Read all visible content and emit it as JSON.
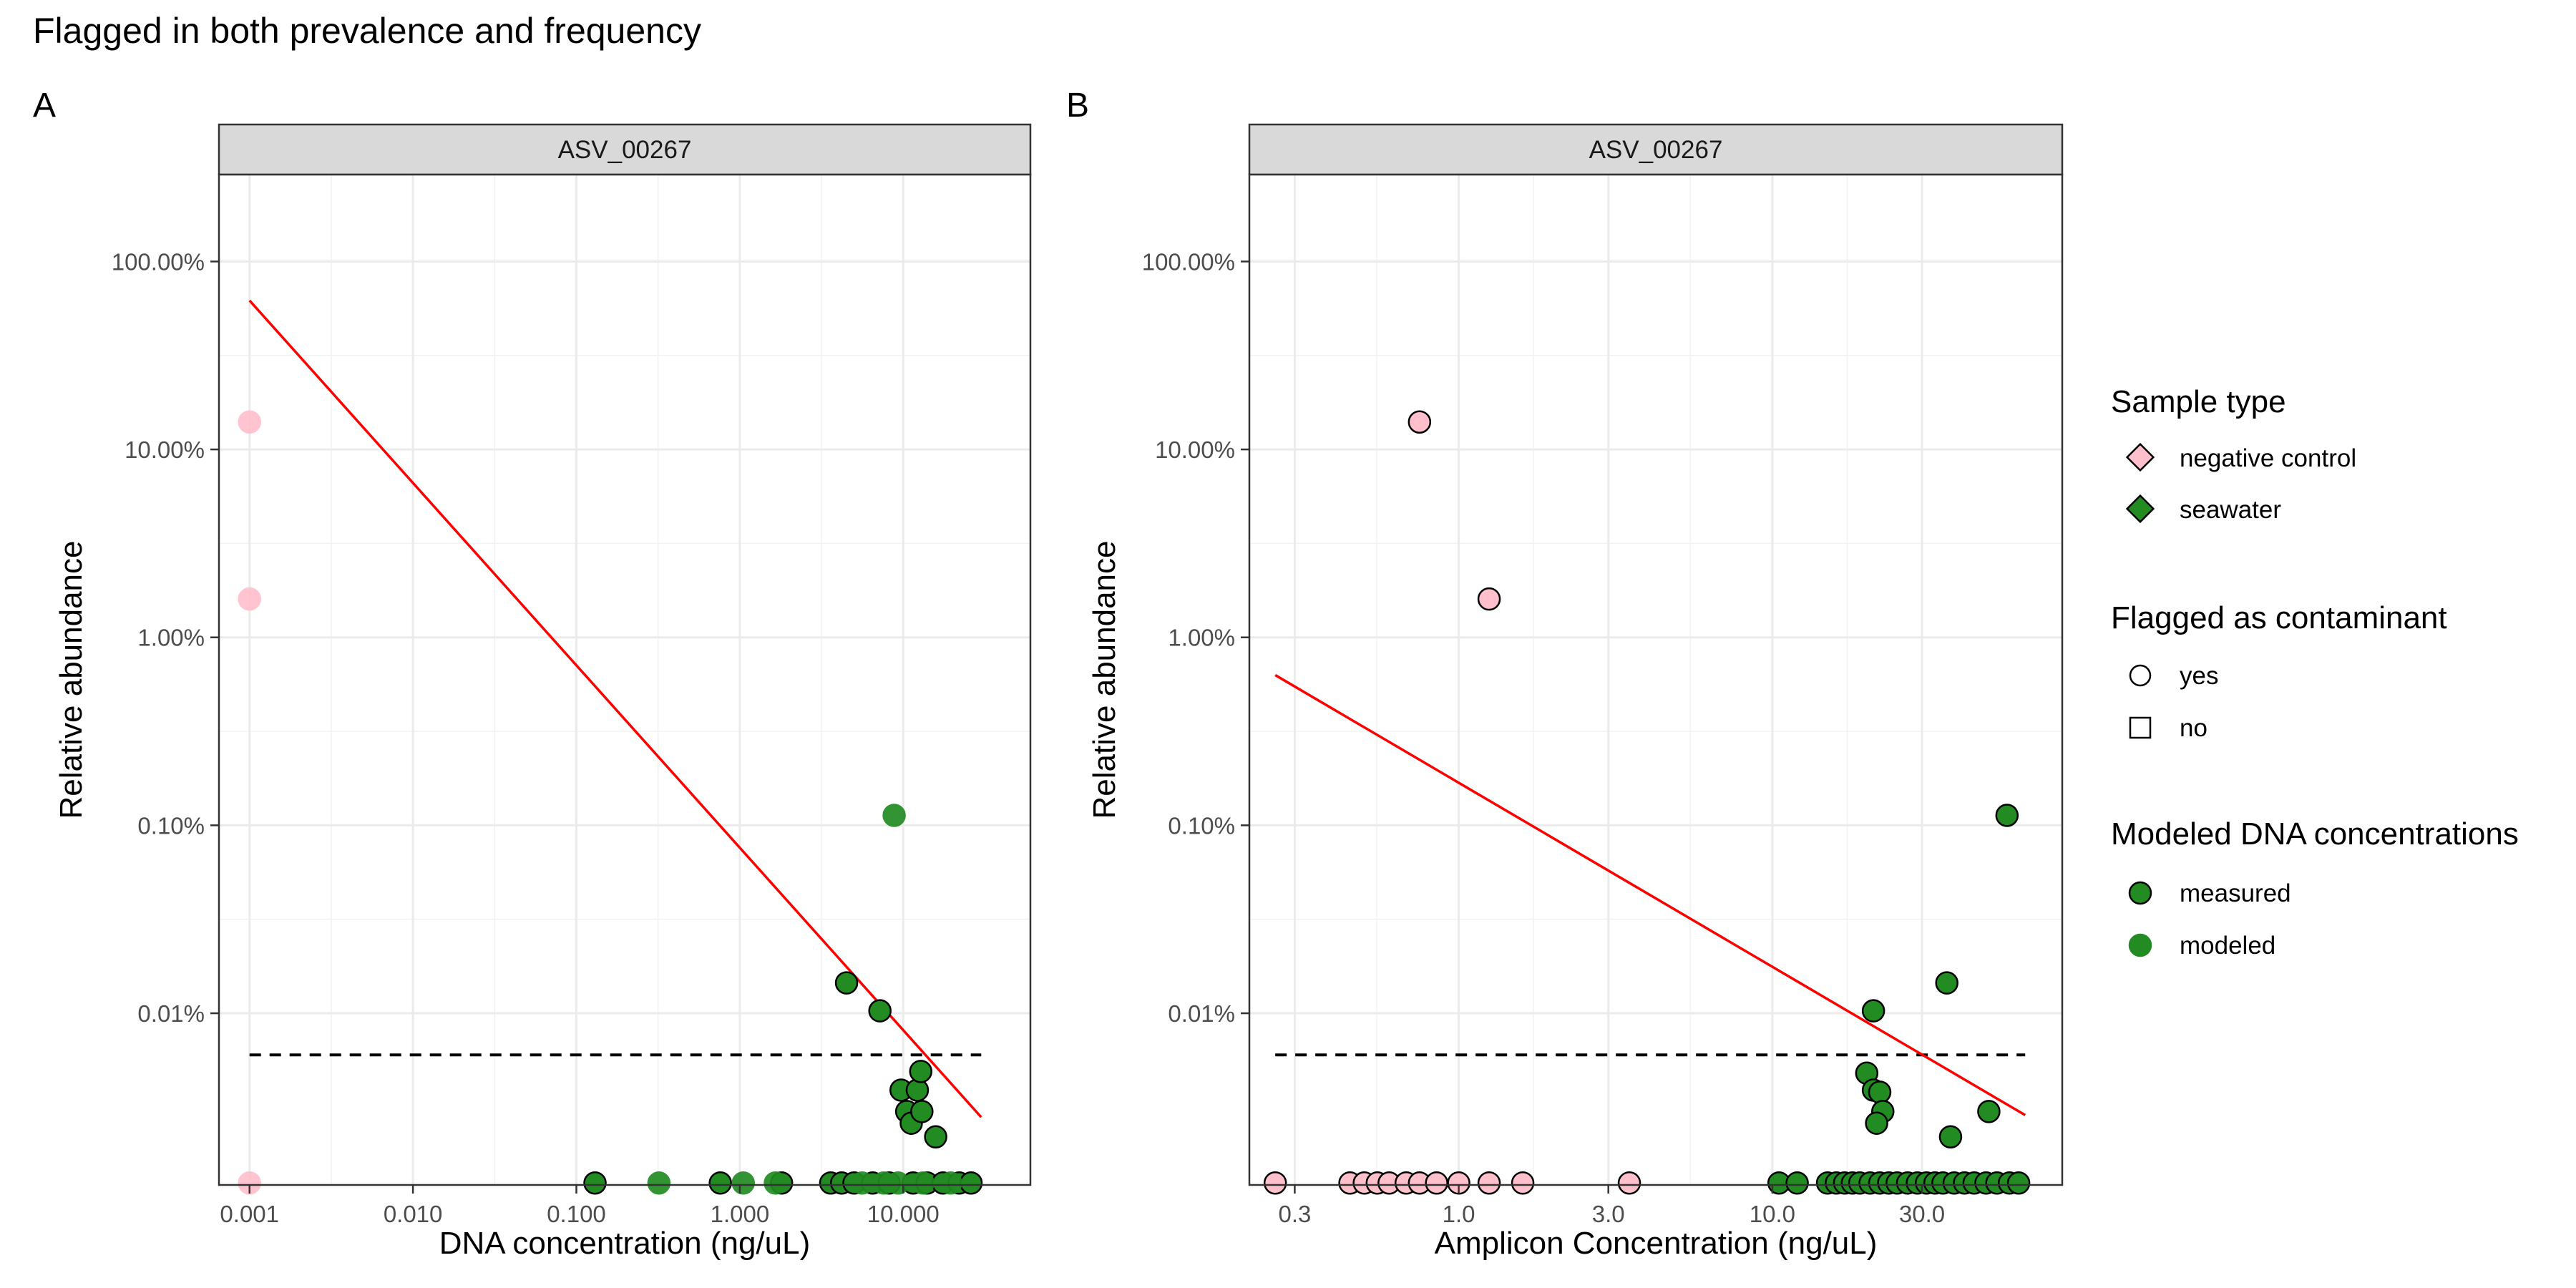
{
  "title": "Flagged in both prevalence and frequency",
  "colors": {
    "negative_control": "#ffc0cb",
    "seawater": "#228b22",
    "fit_line": "#ff0000",
    "threshold": "#000000",
    "grid": "#ebebeb",
    "strip_fill": "#d9d9d9"
  },
  "legend": {
    "sample_type": {
      "title": "Sample type",
      "items": [
        {
          "label": "negative control",
          "color": "#ffc0cb",
          "shape": "diamond"
        },
        {
          "label": "seawater",
          "color": "#228b22",
          "shape": "diamond"
        }
      ]
    },
    "flagged": {
      "title": "Flagged as contaminant",
      "items": [
        {
          "label": "yes",
          "shape": "circle"
        },
        {
          "label": "no",
          "shape": "square"
        }
      ]
    },
    "modeled": {
      "title": "Modeled DNA concentrations",
      "items": [
        {
          "label": "measured",
          "color": "#228b22",
          "outline": "#000000"
        },
        {
          "label": "modeled",
          "color": "#228b22",
          "outline": "#228b22"
        }
      ]
    }
  },
  "chart_data": [
    {
      "panel_tag": "A",
      "strip": "ASV_00267",
      "type": "scatter",
      "xlabel": "DNA concentration (ng/uL)",
      "ylabel": "Relative abundance",
      "x_scale": "log10",
      "y_scale": "log10",
      "xlim": [
        0.00065,
        60
      ],
      "ylim": [
        1.22e-05,
        2.9
      ],
      "x_ticks": [
        {
          "value": 0.001,
          "label": "0.001"
        },
        {
          "value": 0.01,
          "label": "0.010"
        },
        {
          "value": 0.1,
          "label": "0.100"
        },
        {
          "value": 1,
          "label": "1.000"
        },
        {
          "value": 10,
          "label": "10.000"
        }
      ],
      "y_ticks": [
        {
          "value": 1,
          "label": "100.00%"
        },
        {
          "value": 0.1,
          "label": "10.00%"
        },
        {
          "value": 0.01,
          "label": "1.00%"
        },
        {
          "value": 0.001,
          "label": "0.10%"
        },
        {
          "value": 0.0001,
          "label": "0.01%"
        }
      ],
      "threshold_y": 6e-05,
      "threshold_x": [
        0.001,
        30
      ],
      "fit_line": [
        [
          0.001,
          0.62
        ],
        [
          30,
          2.8e-05
        ]
      ],
      "series": [
        {
          "name": "negative control",
          "color": "#ffc0cb",
          "modeled": true,
          "points": [
            [
              0.001,
              0.14
            ],
            [
              0.001,
              0.016
            ],
            [
              0.001,
              1.25e-05
            ]
          ]
        },
        {
          "name": "seawater",
          "color": "#228b22",
          "modeled": false,
          "points": [
            [
              4.5,
              0.000145
            ],
            [
              7.2,
              0.000103
            ],
            [
              9.7,
              3.9e-05
            ],
            [
              10.5,
              3e-05
            ],
            [
              11.2,
              2.6e-05
            ],
            [
              12.2,
              3.9e-05
            ],
            [
              12.8,
              4.9e-05
            ],
            [
              13.0,
              3e-05
            ],
            [
              15.8,
              2.2e-05
            ],
            [
              0.13,
              1.25e-05
            ],
            [
              0.76,
              1.25e-05
            ],
            [
              1.8,
              1.25e-05
            ],
            [
              3.6,
              1.25e-05
            ],
            [
              4.2,
              1.25e-05
            ],
            [
              5.0,
              1.25e-05
            ],
            [
              6.5,
              1.25e-05
            ],
            [
              8.2,
              1.25e-05
            ],
            [
              11.5,
              1.25e-05
            ],
            [
              14.0,
              1.25e-05
            ],
            [
              17.5,
              1.25e-05
            ],
            [
              22.0,
              1.25e-05
            ],
            [
              26.0,
              1.25e-05
            ]
          ]
        },
        {
          "name": "seawater",
          "color": "#228b22",
          "modeled": true,
          "points": [
            [
              8.8,
              0.00113
            ],
            [
              0.32,
              1.25e-05
            ],
            [
              1.05,
              1.25e-05
            ],
            [
              1.65,
              1.25e-05
            ],
            [
              5.6,
              1.25e-05
            ],
            [
              7.6,
              1.25e-05
            ],
            [
              9.3,
              1.25e-05
            ],
            [
              13.2,
              1.25e-05
            ],
            [
              19.5,
              1.25e-05
            ]
          ]
        }
      ]
    },
    {
      "panel_tag": "B",
      "strip": "ASV_00267",
      "type": "scatter",
      "xlabel": "Amplicon Concentration (ng/uL)",
      "ylabel": "Relative abundance",
      "x_scale": "log10",
      "y_scale": "log10",
      "xlim": [
        0.215,
        84
      ],
      "ylim": [
        1.22e-05,
        2.9
      ],
      "x_ticks": [
        {
          "value": 0.3,
          "label": "0.3"
        },
        {
          "value": 1,
          "label": "1.0"
        },
        {
          "value": 3,
          "label": "3.0"
        },
        {
          "value": 10,
          "label": "10.0"
        },
        {
          "value": 30,
          "label": "30.0"
        }
      ],
      "y_ticks": [
        {
          "value": 1,
          "label": "100.00%"
        },
        {
          "value": 0.1,
          "label": "10.00%"
        },
        {
          "value": 0.01,
          "label": "1.00%"
        },
        {
          "value": 0.001,
          "label": "0.10%"
        },
        {
          "value": 0.0001,
          "label": "0.01%"
        }
      ],
      "threshold_y": 6e-05,
      "threshold_x": [
        0.26,
        64
      ],
      "fit_line": [
        [
          0.26,
          0.0063
        ],
        [
          64,
          2.87e-05
        ]
      ],
      "series": [
        {
          "name": "negative control",
          "color": "#ffc0cb",
          "modeled": false,
          "points": [
            [
              0.75,
              0.14
            ],
            [
              1.25,
              0.016
            ],
            [
              0.26,
              1.25e-05
            ],
            [
              0.45,
              1.25e-05
            ],
            [
              0.5,
              1.25e-05
            ],
            [
              0.55,
              1.25e-05
            ],
            [
              0.6,
              1.25e-05
            ],
            [
              0.68,
              1.25e-05
            ],
            [
              0.75,
              1.25e-05
            ],
            [
              0.85,
              1.25e-05
            ],
            [
              1.0,
              1.25e-05
            ],
            [
              1.25,
              1.25e-05
            ],
            [
              1.6,
              1.25e-05
            ],
            [
              3.5,
              1.25e-05
            ]
          ]
        },
        {
          "name": "seawater",
          "color": "#228b22",
          "modeled": false,
          "points": [
            [
              56,
              0.00113
            ],
            [
              36,
              0.000145
            ],
            [
              21,
              0.000103
            ],
            [
              20,
              4.8e-05
            ],
            [
              21,
              3.9e-05
            ],
            [
              22,
              3.8e-05
            ],
            [
              22.5,
              3e-05
            ],
            [
              21.5,
              2.6e-05
            ],
            [
              37,
              2.2e-05
            ],
            [
              49,
              3e-05
            ],
            [
              10.5,
              1.25e-05
            ],
            [
              12,
              1.25e-05
            ],
            [
              15,
              1.25e-05
            ],
            [
              16,
              1.25e-05
            ],
            [
              17,
              1.25e-05
            ],
            [
              18,
              1.25e-05
            ],
            [
              19,
              1.25e-05
            ],
            [
              20.5,
              1.25e-05
            ],
            [
              22,
              1.25e-05
            ],
            [
              23.5,
              1.25e-05
            ],
            [
              25,
              1.25e-05
            ],
            [
              27,
              1.25e-05
            ],
            [
              29,
              1.25e-05
            ],
            [
              31,
              1.25e-05
            ],
            [
              33,
              1.25e-05
            ],
            [
              35,
              1.25e-05
            ],
            [
              38,
              1.25e-05
            ],
            [
              41,
              1.25e-05
            ],
            [
              44,
              1.25e-05
            ],
            [
              48,
              1.25e-05
            ],
            [
              52,
              1.25e-05
            ],
            [
              57,
              1.25e-05
            ],
            [
              61,
              1.25e-05
            ]
          ]
        }
      ]
    }
  ]
}
